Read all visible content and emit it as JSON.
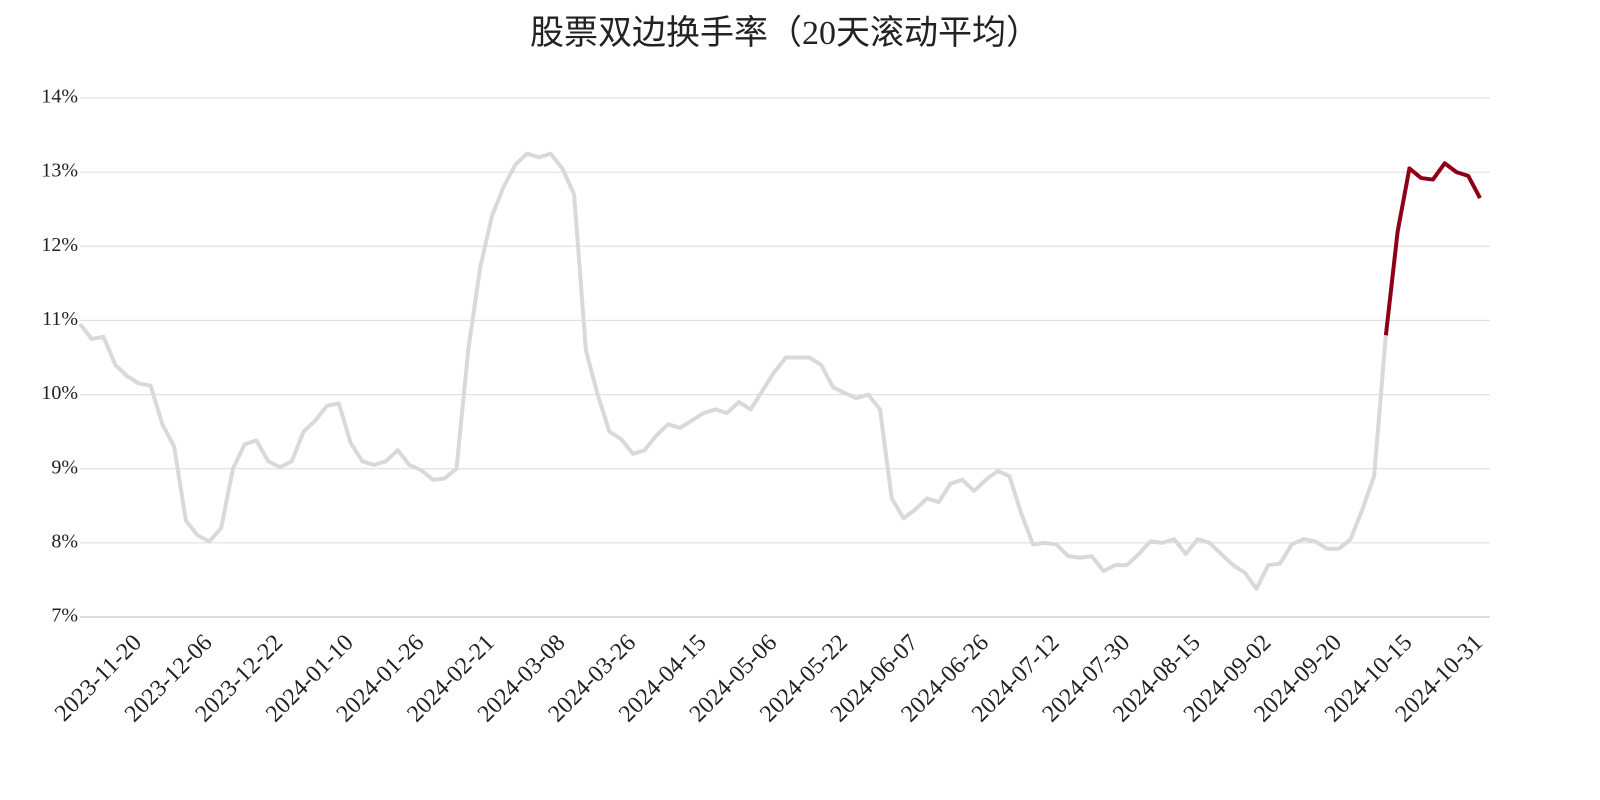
{
  "chart_data": {
    "type": "line",
    "title": "股票双边换手率（20天滚动平均）",
    "categories": [
      null,
      null,
      null,
      null,
      null,
      "2023-11-20",
      null,
      null,
      null,
      null,
      null,
      "2023-12-06",
      null,
      null,
      null,
      null,
      null,
      "2023-12-22",
      null,
      null,
      null,
      null,
      null,
      "2024-01-10",
      null,
      null,
      null,
      null,
      null,
      "2024-01-26",
      null,
      null,
      null,
      null,
      null,
      "2024-02-21",
      null,
      null,
      null,
      null,
      null,
      "2024-03-08",
      null,
      null,
      null,
      null,
      null,
      "2024-03-26",
      null,
      null,
      null,
      null,
      null,
      "2024-04-15",
      null,
      null,
      null,
      null,
      null,
      "2024-05-06",
      null,
      null,
      null,
      null,
      null,
      "2024-05-22",
      null,
      null,
      null,
      null,
      null,
      "2024-06-07",
      null,
      null,
      null,
      null,
      null,
      "2024-06-26",
      null,
      null,
      null,
      null,
      null,
      "2024-07-12",
      null,
      null,
      null,
      null,
      null,
      "2024-07-30",
      null,
      null,
      null,
      null,
      null,
      "2024-08-15",
      null,
      null,
      null,
      null,
      null,
      "2024-09-02",
      null,
      null,
      null,
      null,
      null,
      "2024-09-20",
      null,
      null,
      null,
      null,
      null,
      "2024-10-15",
      null,
      null,
      null,
      null,
      null,
      "2024-10-31"
    ],
    "series": [
      {
        "color": "#d9d9d9",
        "values": [
          10.95,
          10.75,
          10.78,
          10.4,
          10.25,
          10.15,
          10.12,
          9.6,
          9.3,
          8.3,
          8.1,
          8.02,
          8.2,
          9.0,
          9.33,
          9.38,
          9.1,
          9.02,
          9.1,
          9.5,
          9.65,
          9.85,
          9.88,
          9.35,
          9.1,
          9.05,
          9.1,
          9.25,
          9.05,
          8.98,
          8.85,
          8.87,
          9.0,
          10.6,
          11.7,
          12.4,
          12.8,
          13.1,
          13.25,
          13.2,
          13.25,
          13.05,
          12.7,
          10.6,
          10.0,
          9.5,
          9.4,
          9.2,
          9.25,
          9.45,
          9.6,
          9.55,
          9.65,
          9.75,
          9.8,
          9.75,
          9.9,
          9.8,
          10.05,
          10.3,
          10.5,
          10.5,
          10.5,
          10.4,
          10.1,
          10.02,
          9.95,
          10.0,
          9.8,
          8.6,
          8.33,
          8.45,
          8.6,
          8.55,
          8.8,
          8.85,
          8.7,
          8.85,
          8.97,
          8.9,
          8.4,
          7.98,
          8.0,
          7.98,
          7.82,
          7.8,
          7.82,
          7.62,
          7.7,
          7.7,
          7.85,
          8.02,
          8.0,
          8.05,
          7.85,
          8.05,
          8.0,
          7.85,
          7.7,
          7.6,
          7.38,
          7.7,
          7.72,
          7.98,
          8.05,
          8.02,
          7.92,
          7.92,
          8.05,
          8.45,
          8.9,
          10.8,
          null,
          null,
          null,
          null,
          null,
          null,
          null,
          null
        ]
      },
      {
        "color": "#8b0016",
        "values": [
          null,
          null,
          null,
          null,
          null,
          null,
          null,
          null,
          null,
          null,
          null,
          null,
          null,
          null,
          null,
          null,
          null,
          null,
          null,
          null,
          null,
          null,
          null,
          null,
          null,
          null,
          null,
          null,
          null,
          null,
          null,
          null,
          null,
          null,
          null,
          null,
          null,
          null,
          null,
          null,
          null,
          null,
          null,
          null,
          null,
          null,
          null,
          null,
          null,
          null,
          null,
          null,
          null,
          null,
          null,
          null,
          null,
          null,
          null,
          null,
          null,
          null,
          null,
          null,
          null,
          null,
          null,
          null,
          null,
          null,
          null,
          null,
          null,
          null,
          null,
          null,
          null,
          null,
          null,
          null,
          null,
          null,
          null,
          null,
          null,
          null,
          null,
          null,
          null,
          null,
          null,
          null,
          null,
          null,
          null,
          null,
          null,
          null,
          null,
          null,
          null,
          null,
          null,
          null,
          null,
          null,
          null,
          null,
          null,
          null,
          null,
          10.8,
          12.2,
          13.05,
          12.92,
          12.9,
          13.12,
          13.0,
          12.95,
          12.65
        ]
      }
    ],
    "ylim": [
      7,
      14
    ],
    "yticks": [
      {
        "value": 7,
        "label": "7%"
      },
      {
        "value": 8,
        "label": "8%"
      },
      {
        "value": 9,
        "label": "9%"
      },
      {
        "value": 10,
        "label": "10%"
      },
      {
        "value": 11,
        "label": "11%"
      },
      {
        "value": 12,
        "label": "12%"
      },
      {
        "value": 13,
        "label": "13%"
      },
      {
        "value": 14,
        "label": "14%"
      }
    ],
    "grid": true
  }
}
